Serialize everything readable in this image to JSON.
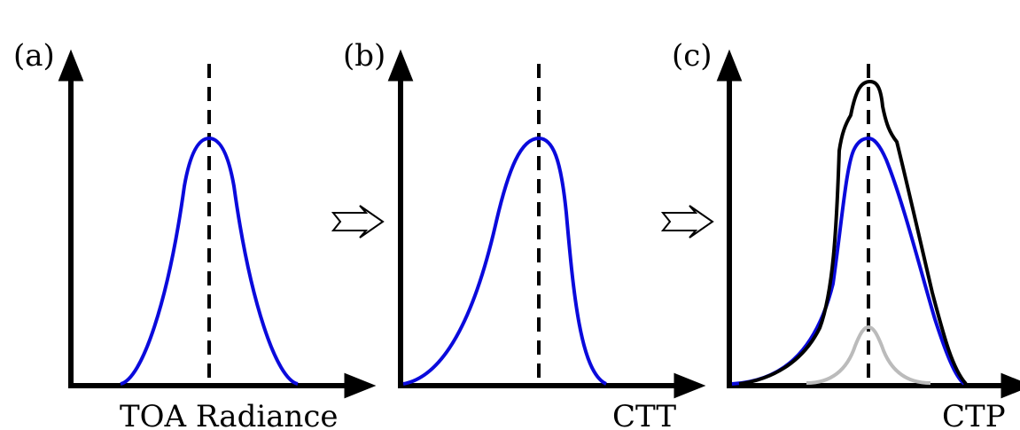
{
  "panels": [
    {
      "label": "(a)",
      "xlabel": "TOA Radiance"
    },
    {
      "label": "(b)",
      "xlabel": "CTT"
    },
    {
      "label": "(c)",
      "xlabel": "CTP"
    }
  ],
  "colors": {
    "axis": "#000000",
    "curve_primary": "#0a0adc",
    "curve_total": "#000000",
    "curve_secondary": "#bbbbbb",
    "arrow_fill": "#ffffff"
  }
}
